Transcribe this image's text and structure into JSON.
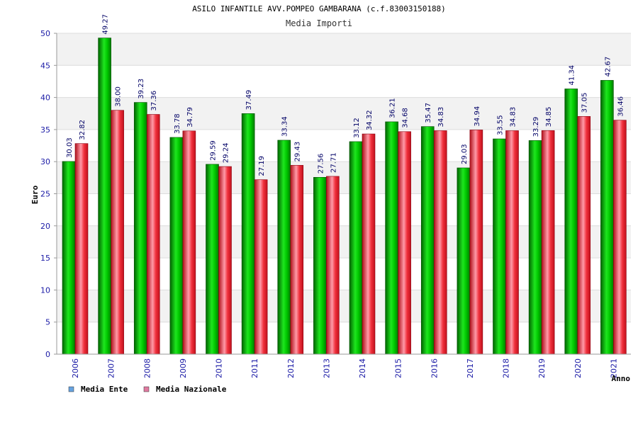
{
  "chart_data": {
    "type": "bar",
    "title": "ASILO INFANTILE AVV.POMPEO GAMBARANA (c.f.83003150188)",
    "subtitle": "Media Importi",
    "xlabel": "Anno",
    "ylabel": "Euro",
    "ylim": [
      0,
      50
    ],
    "yticks": [
      "0",
      "5",
      "10",
      "15",
      "20",
      "25",
      "30",
      "35",
      "40",
      "45",
      "50"
    ],
    "categories": [
      "2006",
      "2007",
      "2008",
      "2009",
      "2010",
      "2011",
      "2012",
      "2013",
      "2014",
      "2015",
      "2016",
      "2017",
      "2018",
      "2019",
      "2020",
      "2021"
    ],
    "series": [
      {
        "name": "Media Ente",
        "color": "#00b400",
        "legend_color": "#66a3e0",
        "values": [
          30.03,
          49.27,
          39.23,
          33.78,
          29.59,
          37.49,
          33.34,
          27.56,
          33.12,
          36.21,
          35.47,
          29.03,
          33.55,
          33.29,
          41.34,
          42.67
        ],
        "labels": [
          "30.03",
          "49.27",
          "39.23",
          "33.78",
          "29.59",
          "37.49",
          "33.34",
          "27.56",
          "33.12",
          "36.21",
          "35.47",
          "29.03",
          "33.55",
          "33.29",
          "41.34",
          "42.67"
        ]
      },
      {
        "name": "Media Nazionale",
        "color": "#e0202a",
        "legend_color": "#e07aa0",
        "values": [
          32.82,
          38.0,
          37.36,
          34.79,
          29.24,
          27.19,
          29.43,
          27.71,
          34.32,
          34.68,
          34.83,
          34.94,
          34.83,
          34.85,
          37.05,
          36.46
        ],
        "labels": [
          "32.82",
          "38.00",
          "37.36",
          "34.79",
          "29.24",
          "27.19",
          "29.43",
          "27.71",
          "34.32",
          "34.68",
          "34.83",
          "34.94",
          "34.83",
          "34.85",
          "37.05",
          "36.46"
        ]
      }
    ],
    "legend_position": "bottom-left",
    "grid": true
  }
}
